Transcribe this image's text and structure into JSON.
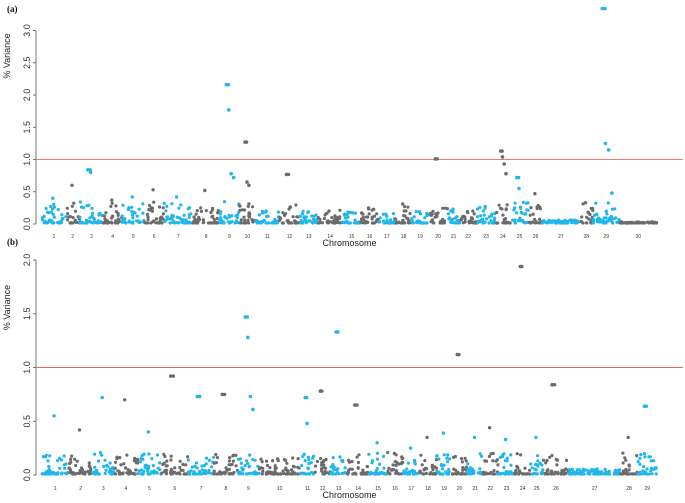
{
  "colors": {
    "blue": "#1fb6ec",
    "gray": "#6b6b6b",
    "threshold": "#e06b5f",
    "axis": "#555555"
  },
  "chart_data": [
    {
      "panel": "(a)",
      "type": "scatter",
      "title": "",
      "xlabel": "Chromosome",
      "ylabel": "% Variance",
      "ylim": [
        0,
        3.35
      ],
      "yticks": [
        0.0,
        0.5,
        1.0,
        1.5,
        2.0,
        2.5,
        3.0
      ],
      "ytick_labels": [
        "0.0",
        "0.5",
        "1.0",
        "1.5",
        "2.0",
        "2.5",
        "3.0"
      ],
      "threshold": 1.0,
      "chromosomes": [
        "1",
        "2",
        "3",
        "4",
        "5",
        "6",
        "7",
        "8",
        "9",
        "10",
        "11",
        "12",
        "13",
        "14",
        "15",
        "16",
        "17",
        "18",
        "19",
        "20",
        "21",
        "22",
        "23",
        "24",
        "25",
        "26",
        "27",
        "28",
        "29",
        "30"
      ],
      "max_values": [
        0.4,
        0.6,
        0.84,
        0.37,
        0.42,
        0.53,
        0.42,
        0.52,
        2.16,
        1.27,
        0.2,
        0.77,
        0.18,
        0.2,
        0.18,
        0.25,
        0.15,
        0.31,
        0.19,
        1.01,
        0.23,
        0.19,
        0.27,
        1.13,
        0.72,
        0.47,
        0.05,
        0.33,
        3.34,
        0.02
      ],
      "peaks": [
        {
          "chr": "3",
          "values": [
            0.84,
            0.8
          ]
        },
        {
          "chr": "9",
          "values": [
            2.16,
            1.77,
            0.78,
            0.72
          ]
        },
        {
          "chr": "10",
          "values": [
            1.27,
            0.65,
            0.6
          ]
        },
        {
          "chr": "12",
          "values": [
            0.77
          ]
        },
        {
          "chr": "20",
          "values": [
            1.01
          ]
        },
        {
          "chr": "24",
          "values": [
            1.13,
            1.04,
            0.93,
            0.78
          ]
        },
        {
          "chr": "25",
          "values": [
            0.72,
            0.55
          ]
        },
        {
          "chr": "29",
          "values": [
            3.34,
            1.25,
            1.15,
            0.48
          ]
        }
      ]
    },
    {
      "panel": "(b)",
      "type": "scatter",
      "title": "",
      "xlabel": "Chromosome",
      "ylabel": "% Variance",
      "ylim": [
        0,
        2.0
      ],
      "yticks": [
        0.0,
        0.5,
        1.0,
        1.5,
        2.0
      ],
      "ytick_labels": [
        "0.0",
        "0.5",
        "1.0",
        "1.5",
        "2.0"
      ],
      "threshold": 1.0,
      "chromosomes": [
        "1",
        "2",
        "3",
        "4",
        "5",
        "6",
        "7",
        "8",
        "9",
        "10",
        "11",
        "12",
        "13",
        "14",
        "15",
        "16",
        "17",
        "18",
        "19",
        "20",
        "21",
        "22",
        "23",
        "24",
        "25",
        "26",
        "27",
        "28",
        "29"
      ],
      "max_values": [
        0.55,
        0.42,
        0.72,
        0.7,
        0.4,
        0.92,
        0.73,
        0.75,
        1.47,
        0.15,
        0.72,
        0.78,
        1.33,
        0.65,
        0.3,
        0.2,
        0.25,
        0.35,
        0.39,
        1.12,
        0.35,
        0.44,
        0.33,
        1.94,
        0.35,
        0.84,
        0.05,
        0.35,
        0.64
      ],
      "peaks": [
        {
          "chr": "6",
          "values": [
            0.92
          ]
        },
        {
          "chr": "7",
          "values": [
            0.73
          ]
        },
        {
          "chr": "8",
          "values": [
            0.75
          ]
        },
        {
          "chr": "9",
          "values": [
            1.47,
            1.28,
            0.73,
            0.61
          ]
        },
        {
          "chr": "11",
          "values": [
            0.72,
            0.48
          ]
        },
        {
          "chr": "12",
          "values": [
            0.78
          ]
        },
        {
          "chr": "13",
          "values": [
            1.33
          ]
        },
        {
          "chr": "14",
          "values": [
            0.65
          ]
        },
        {
          "chr": "20",
          "values": [
            1.12
          ]
        },
        {
          "chr": "24",
          "values": [
            1.94
          ]
        },
        {
          "chr": "26",
          "values": [
            0.84
          ]
        },
        {
          "chr": "29",
          "values": [
            0.64
          ]
        }
      ]
    }
  ]
}
